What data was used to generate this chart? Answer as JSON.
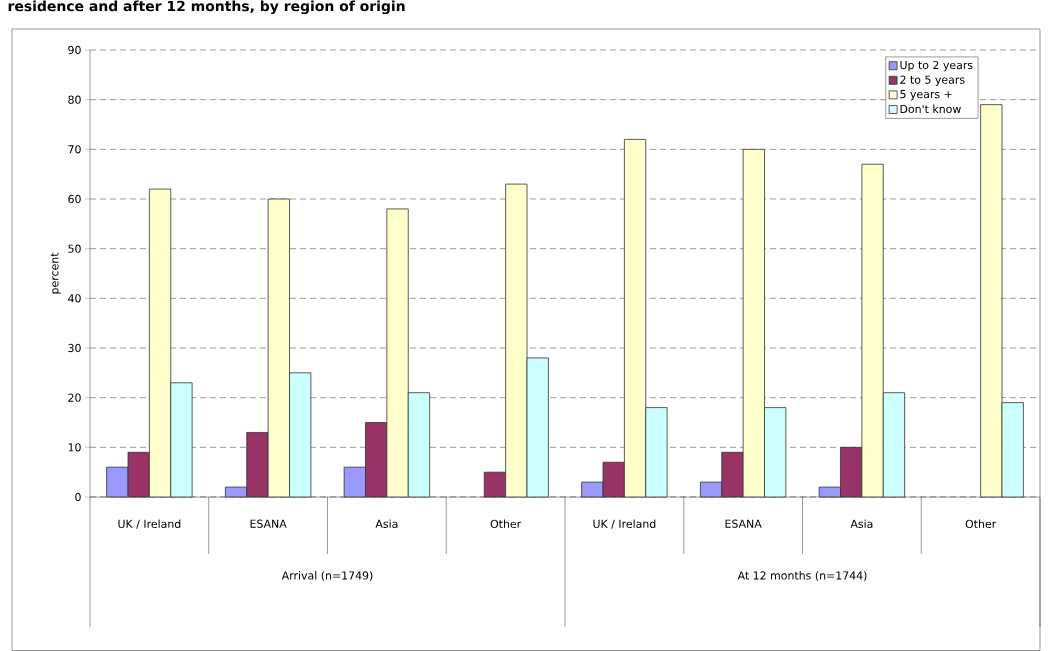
{
  "chart_data": {
    "type": "bar",
    "title": "residence and after 12 months, by region of origin",
    "ylabel": "percent",
    "categories": [
      "UK / Ireland",
      "ESANA",
      "Asia",
      "Other",
      "UK / Ireland",
      "ESANA",
      "Asia",
      "Other"
    ],
    "series": [
      {
        "name": "Up to 2 years",
        "color": "#9999ff",
        "values": [
          6,
          2,
          6,
          null,
          3,
          3,
          2,
          null
        ]
      },
      {
        "name": "2 to 5 years",
        "color": "#993366",
        "values": [
          9,
          13,
          15,
          5,
          7,
          9,
          10,
          null
        ]
      },
      {
        "name": "5 years +",
        "color": "#ffffcc",
        "values": [
          62,
          60,
          58,
          63,
          72,
          70,
          67,
          79
        ]
      },
      {
        "name": "Don't know",
        "color": "#ccffff",
        "values": [
          23,
          25,
          21,
          28,
          18,
          18,
          21,
          19
        ]
      }
    ],
    "annotations": [
      "Arrival (n=1749)",
      "At 12 months (n=1744)"
    ],
    "ylim": [
      0,
      90
    ],
    "yticks": [
      0,
      10,
      20,
      30,
      40,
      50,
      60,
      70,
      80,
      90
    ],
    "grid": "y",
    "legend": "top right"
  }
}
